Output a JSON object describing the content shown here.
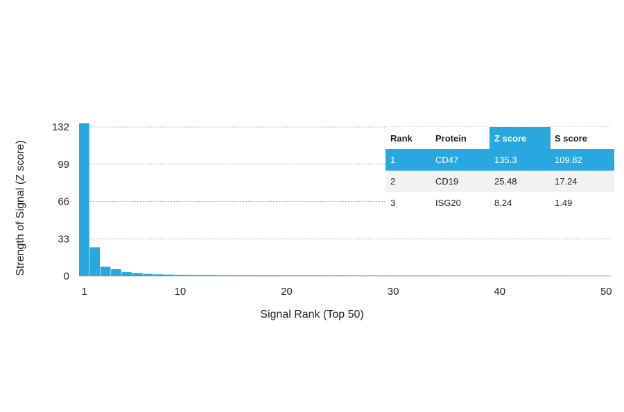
{
  "chart_data": {
    "type": "bar",
    "xlabel": "Signal Rank (Top 50)",
    "ylabel": "Strength of Signal (Z score)",
    "ylim": [
      0,
      132
    ],
    "y_ticks": [
      0,
      33,
      66,
      99,
      132
    ],
    "x_ticks": [
      1,
      10,
      20,
      30,
      40,
      50
    ],
    "grid": "horizontal dotted",
    "bar_color": "#29a8df",
    "ranks": [
      1,
      2,
      3,
      4,
      5,
      6,
      7,
      8,
      9,
      10,
      11,
      12,
      13,
      14,
      15,
      16,
      17,
      18,
      19,
      20,
      21,
      22,
      23,
      24,
      25,
      26,
      27,
      28,
      29,
      30,
      31,
      32,
      33,
      34,
      35,
      36,
      37,
      38,
      39,
      40,
      41,
      42,
      43,
      44,
      45,
      46,
      47,
      48,
      49,
      50
    ],
    "values": [
      135.3,
      25.48,
      8.24,
      6.1,
      3.6,
      2.6,
      2.0,
      1.6,
      1.3,
      1.1,
      1.0,
      0.9,
      0.85,
      0.8,
      0.75,
      0.7,
      0.68,
      0.65,
      0.62,
      0.6,
      0.58,
      0.56,
      0.55,
      0.53,
      0.52,
      0.5,
      0.49,
      0.48,
      0.47,
      0.46,
      0.45,
      0.44,
      0.43,
      0.42,
      0.41,
      0.4,
      0.4,
      0.39,
      0.38,
      0.38,
      0.37,
      0.36,
      0.36,
      0.35,
      0.35,
      0.34,
      0.34,
      0.33,
      0.33,
      0.32
    ]
  },
  "table": {
    "header_highlight_color": "#29a8df",
    "row_highlight_color": "#29a8df",
    "alt_row_color": "#f2f2f2",
    "columns": [
      "Rank",
      "Protein",
      "Z score",
      "S score"
    ],
    "rows": [
      [
        "1",
        "CD47",
        "135.3",
        "109.82"
      ],
      [
        "2",
        "CD19",
        "25.48",
        "17.24"
      ],
      [
        "3",
        "ISG20",
        "8.24",
        "1.49"
      ]
    ]
  }
}
